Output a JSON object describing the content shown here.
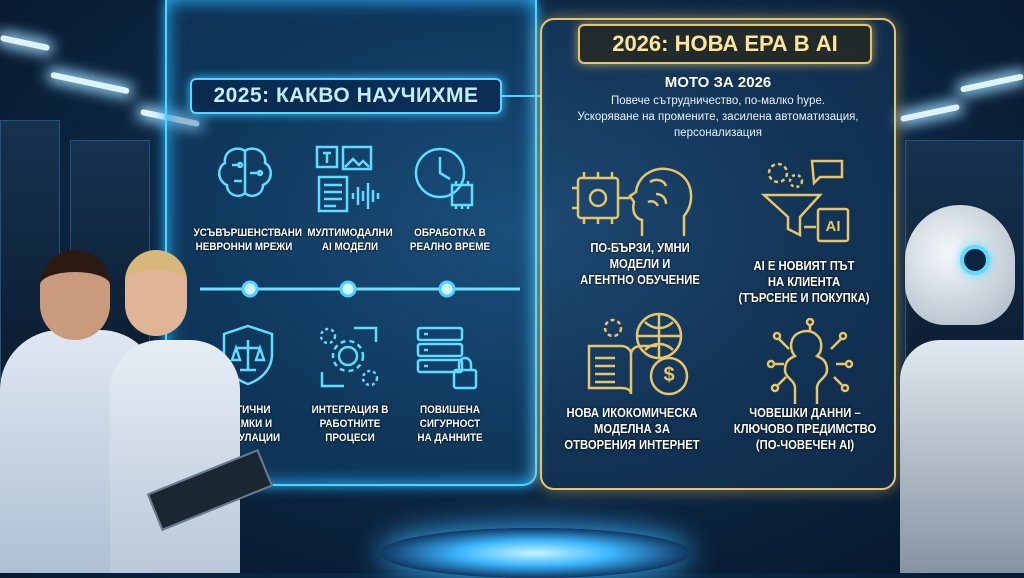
{
  "left_panel": {
    "title": "2025: КАКВО НАУЧИХМЕ",
    "items": [
      {
        "label": "УСЪВЪРШЕНСТВАНИ\nНЕВРОННИ МРЕЖИ",
        "icon": "brain-circuit-icon"
      },
      {
        "label": "МУЛТИМОДАЛНИ\nAI МОДЕЛИ",
        "icon": "multimodal-text-image-audio-icon"
      },
      {
        "label": "ОБРАБОТКА В\nРЕАЛНО ВРЕМЕ",
        "icon": "clock-chip-icon"
      },
      {
        "label": "ЕТИЧНИ\nРАМКИ И\nРЕГУЛАЦИИ",
        "icon": "shield-scales-icon"
      },
      {
        "label": "ИНТЕГРАЦИЯ В\nРАБОТНИТЕ\nПРОЦЕСИ",
        "icon": "gears-cycle-icon"
      },
      {
        "label": "ПОВИШЕНА\nСИГУРНОСТ\nНА ДАННИТЕ",
        "icon": "server-lock-icon"
      }
    ]
  },
  "right_panel": {
    "title": "2026: НОВА ЕРА В AI",
    "motto_heading": "МОТО ЗА 2026",
    "motto_text": "Повече сътрудничество, по-малко hype.\nУскоряване на промените, засилена автоматизация,\nперсонализация",
    "items": [
      {
        "label": "ПО-БЪРЗИ, УМНИ\nМОДЕЛИ И\nАГЕНТНО ОБУЧЕНИЕ",
        "icon": "chip-head-brain-icon"
      },
      {
        "label": "AI Е НОВИЯТ ПЪТ\nНА КЛИЕНТА\n(ТЪРСЕНЕ И ПОКУПКА)",
        "icon": "funnel-ai-icon",
        "icon_text": "AI"
      },
      {
        "label": "НОВА ИКОКОМИЧЕСКА\nМОДЕЛНА ЗА\nОТВОРЕНИЯ ИНТЕРНЕТ",
        "icon": "book-globe-coin-icon",
        "icon_text": "$"
      },
      {
        "label": "ЧОВЕШКИ ДАННИ –\nКЛЮЧОВО ПРЕДИМСТВО\n(ПО-ЧОВЕЧЕН AI)",
        "icon": "person-network-icon"
      }
    ]
  },
  "colors": {
    "cyan_accent": "#4fd4ff",
    "gold_accent": "#e8c56a",
    "background": "#0d2a48"
  }
}
